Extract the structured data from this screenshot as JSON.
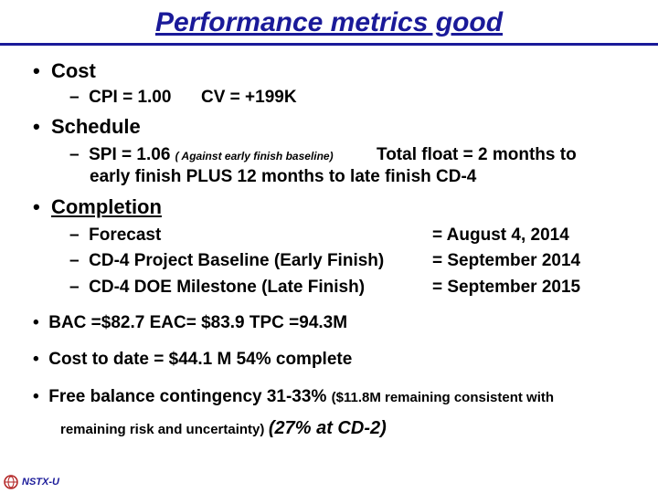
{
  "slide": {
    "title": "Performance metrics good",
    "cost": {
      "heading": "Cost",
      "cpi": "CPI = 1.00",
      "cv": "CV = +199K"
    },
    "schedule": {
      "heading": "Schedule",
      "spi": "SPI = 1.06",
      "spi_note": "( Against early finish baseline)",
      "float_line1": "Total float = 2 months to",
      "float_line2": "early finish PLUS 12 months to late finish CD-4"
    },
    "completion": {
      "heading": "Completion",
      "rows": [
        {
          "label": "Forecast",
          "value": "= August 4, 2014"
        },
        {
          "label": "CD-4 Project Baseline (Early Finish)",
          "value": "= September 2014"
        },
        {
          "label": "CD-4 DOE Milestone  (Late Finish)",
          "value": "= September 2015"
        }
      ]
    },
    "bac_line": "BAC =$82.7  EAC= $83.9  TPC =94.3M",
    "cost_to_date": "Cost to date = $44.1 M  54% complete",
    "contingency": {
      "main": "Free balance contingency  31-33%",
      "note1": "($11.8M remaining consistent with",
      "note2": "remaining risk and uncertainty)",
      "cd2": "(27% at CD-2)"
    },
    "logo_text": "NSTX-U"
  },
  "colors": {
    "title": "#1a1a99",
    "text": "#000000"
  }
}
